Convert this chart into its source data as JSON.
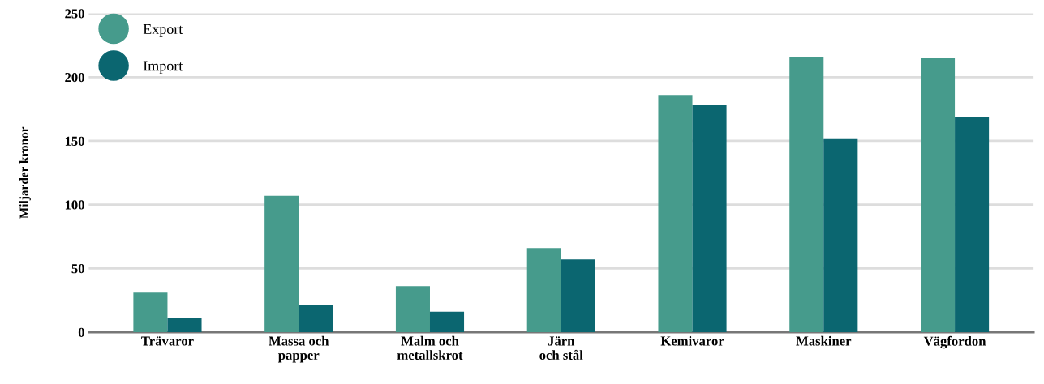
{
  "chart_data": {
    "type": "bar",
    "ylabel": "Miljarder kronor",
    "categories": [
      "Trävaror",
      "Massa och\npapper",
      "Malm och\nmetallskrot",
      "Järn\noch stål",
      "Kemivaror",
      "Maskiner",
      "Vägfordon"
    ],
    "series": [
      {
        "name": "Export",
        "color": "#469b8c",
        "values": [
          31,
          107,
          36,
          66,
          186,
          216,
          215
        ]
      },
      {
        "name": "Import",
        "color": "#0b6670",
        "values": [
          11,
          21,
          16,
          57,
          178,
          152,
          169
        ]
      }
    ],
    "ylim": [
      0,
      250
    ],
    "yticks": [
      0,
      50,
      100,
      150,
      200,
      250
    ],
    "grid": "y",
    "legend": "top left"
  }
}
